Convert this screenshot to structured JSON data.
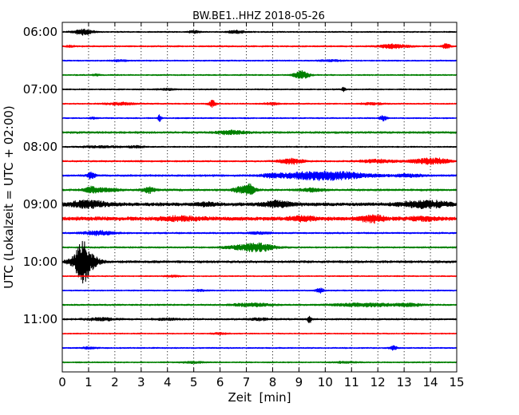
{
  "chart_data": {
    "type": "line",
    "title": "BW.BE1..HHZ 2018-05-26",
    "xlabel": "Zeit  [min]",
    "ylabel": "UTC (Lokalzeit = UTC + 02:00)",
    "xlim": [
      0,
      15
    ],
    "x_ticks": [
      "0",
      "1",
      "2",
      "3",
      "4",
      "5",
      "6",
      "7",
      "8",
      "9",
      "10",
      "11",
      "12",
      "13",
      "14",
      "15"
    ],
    "y_ticks": [
      "06:00",
      "07:00",
      "08:00",
      "09:00",
      "10:00",
      "11:00"
    ],
    "vertical_grid": "dotted",
    "trace_interval_minutes": 15,
    "trace_colors": [
      "#000000",
      "#ff0000",
      "#0000ff",
      "#008000"
    ],
    "traces": [
      {
        "start": "06:00",
        "noise": 0.8,
        "events": [
          [
            0.8,
            3.5,
            0.25
          ],
          [
            5.0,
            1.5,
            0.15
          ],
          [
            6.6,
            2.0,
            0.2
          ]
        ]
      },
      {
        "start": "06:15",
        "noise": 0.9,
        "events": [
          [
            12.6,
            2.5,
            0.4
          ],
          [
            14.6,
            3.5,
            0.1
          ],
          [
            0.3,
            1.2,
            0.1
          ]
        ]
      },
      {
        "start": "06:30",
        "noise": 0.8,
        "events": [
          [
            2.2,
            1.0,
            0.2
          ],
          [
            10.2,
            1.0,
            0.3
          ]
        ]
      },
      {
        "start": "06:45",
        "noise": 0.8,
        "events": [
          [
            9.1,
            5.0,
            0.2
          ],
          [
            1.3,
            1.2,
            0.1
          ]
        ]
      },
      {
        "start": "07:00",
        "noise": 0.8,
        "events": [
          [
            10.7,
            3.5,
            0.05
          ],
          [
            4.0,
            1.0,
            0.2
          ]
        ]
      },
      {
        "start": "07:15",
        "noise": 0.8,
        "events": [
          [
            5.7,
            4.0,
            0.1
          ],
          [
            2.2,
            1.5,
            0.4
          ],
          [
            8.0,
            1.2,
            0.2
          ],
          [
            11.8,
            1.2,
            0.3
          ]
        ]
      },
      {
        "start": "07:30",
        "noise": 0.8,
        "events": [
          [
            3.7,
            4.0,
            0.05
          ],
          [
            12.2,
            3.0,
            0.1
          ],
          [
            1.2,
            1.0,
            0.1
          ]
        ]
      },
      {
        "start": "07:45",
        "noise": 1.3,
        "events": [
          [
            6.4,
            2.0,
            0.4
          ]
        ]
      },
      {
        "start": "08:00",
        "noise": 0.8,
        "events": [
          [
            1.5,
            1.0,
            0.6
          ],
          [
            2.8,
            1.2,
            0.2
          ]
        ]
      },
      {
        "start": "08:15",
        "noise": 1.0,
        "events": [
          [
            8.7,
            3.5,
            0.3
          ],
          [
            12.0,
            1.8,
            0.5
          ],
          [
            13.8,
            3.0,
            0.4
          ],
          [
            14.4,
            2.0,
            0.3
          ]
        ]
      },
      {
        "start": "08:30",
        "noise": 1.2,
        "events": [
          [
            10.0,
            5.5,
            1.1
          ],
          [
            1.1,
            4.5,
            0.1
          ],
          [
            8.0,
            1.5,
            0.3
          ],
          [
            13.2,
            1.5,
            0.4
          ]
        ]
      },
      {
        "start": "08:45",
        "noise": 1.3,
        "events": [
          [
            1.1,
            3.5,
            0.2
          ],
          [
            3.3,
            3.5,
            0.15
          ],
          [
            7.1,
            8.0,
            0.15
          ],
          [
            6.7,
            3.0,
            0.15
          ],
          [
            9.5,
            2.0,
            0.3
          ],
          [
            1.7,
            2.0,
            0.3
          ]
        ]
      },
      {
        "start": "09:00",
        "noise": 2.2,
        "events": [
          [
            1.0,
            4.0,
            0.5
          ],
          [
            8.2,
            3.5,
            0.4
          ],
          [
            13.8,
            4.0,
            0.6
          ],
          [
            5.5,
            1.5,
            0.3
          ]
        ]
      },
      {
        "start": "09:15",
        "noise": 2.5,
        "events": [
          [
            11.8,
            4.0,
            0.3
          ],
          [
            9.1,
            2.5,
            0.3
          ],
          [
            4.5,
            2.0,
            0.5
          ],
          [
            13.7,
            2.0,
            0.3
          ]
        ]
      },
      {
        "start": "09:30",
        "noise": 1.0,
        "events": [
          [
            1.4,
            2.5,
            0.4
          ],
          [
            7.5,
            1.2,
            0.3
          ]
        ]
      },
      {
        "start": "09:45",
        "noise": 1.0,
        "events": [
          [
            7.5,
            4.5,
            0.4
          ],
          [
            6.8,
            2.0,
            0.5
          ]
        ]
      },
      {
        "start": "10:00",
        "noise": 1.5,
        "events": [
          [
            0.8,
            14.0,
            0.15
          ],
          [
            0.95,
            9.0,
            0.3
          ],
          [
            0.65,
            7.0,
            0.25
          ]
        ]
      },
      {
        "start": "10:15",
        "noise": 0.7,
        "events": [
          [
            4.2,
            1.0,
            0.2
          ]
        ]
      },
      {
        "start": "10:30",
        "noise": 0.8,
        "events": [
          [
            9.8,
            3.0,
            0.1
          ],
          [
            5.2,
            1.0,
            0.2
          ]
        ]
      },
      {
        "start": "10:45",
        "noise": 1.0,
        "events": [
          [
            7.2,
            2.0,
            0.5
          ],
          [
            11.5,
            2.0,
            0.8
          ],
          [
            13.2,
            1.5,
            0.4
          ]
        ]
      },
      {
        "start": "11:00",
        "noise": 1.1,
        "events": [
          [
            9.4,
            4.5,
            0.05
          ],
          [
            1.5,
            1.5,
            0.4
          ],
          [
            4.0,
            1.0,
            0.3
          ],
          [
            7.5,
            1.2,
            0.3
          ]
        ]
      },
      {
        "start": "11:15",
        "noise": 0.7,
        "events": [
          [
            6.0,
            1.0,
            0.2
          ]
        ]
      },
      {
        "start": "11:30",
        "noise": 0.8,
        "events": [
          [
            12.6,
            2.5,
            0.1
          ],
          [
            1.0,
            1.0,
            0.2
          ]
        ]
      },
      {
        "start": "11:45",
        "noise": 0.8,
        "events": [
          [
            5.0,
            1.0,
            0.3
          ],
          [
            10.8,
            1.0,
            0.3
          ]
        ]
      }
    ]
  }
}
